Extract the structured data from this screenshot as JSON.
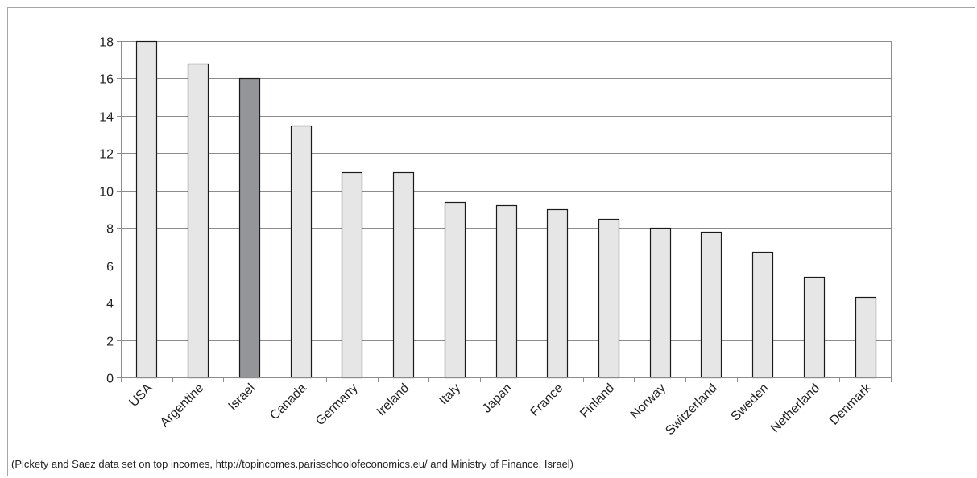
{
  "chart_data": {
    "type": "bar",
    "title": "",
    "xlabel": "",
    "ylabel": "",
    "categories": [
      "USA",
      "Argentine",
      "Israel",
      "Canada",
      "Germany",
      "Ireland",
      "Italy",
      "Japan",
      "France",
      "Finland",
      "Norway",
      "Switzerland",
      "Sweden",
      "Netherland",
      "Denmark"
    ],
    "values": [
      18.0,
      16.8,
      16.0,
      13.5,
      11.0,
      11.0,
      9.4,
      9.2,
      9.0,
      8.5,
      8.0,
      7.8,
      6.7,
      5.4,
      4.3
    ],
    "highlight_category": "Israel",
    "ylim": [
      0,
      18
    ],
    "yticks": [
      0,
      2,
      4,
      6,
      8,
      10,
      12,
      14,
      16,
      18
    ],
    "grid": true,
    "legend": "none",
    "colors": {
      "bar": "#e6e6e6",
      "highlight": "#939598",
      "bar_stroke": "#1a1a1a",
      "grid": "#8c8c8c",
      "axis": "#8c8c8c"
    }
  },
  "source_note": "(Pickety and Saez data set on top incomes, http://topincomes.parisschoolofeconomics.eu/ and Ministry of Finance, Israel)"
}
